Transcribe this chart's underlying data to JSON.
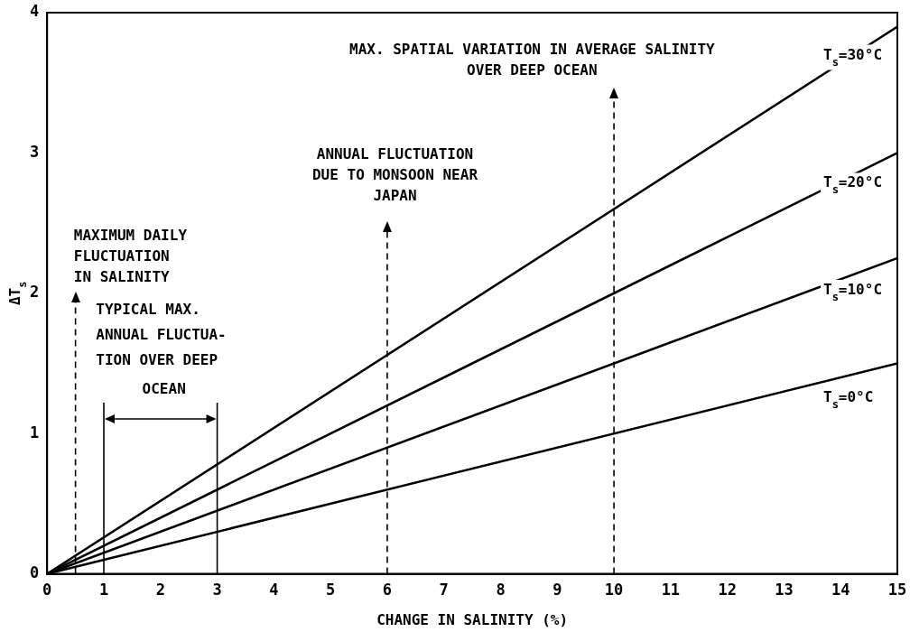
{
  "chart_data": {
    "type": "line",
    "xlabel": "CHANGE IN SALINITY (%)",
    "ylabel": "ΔT$_{s}$",
    "x": [
      0,
      15
    ],
    "xlim": [
      0,
      15
    ],
    "xticks": [
      0,
      1,
      2,
      3,
      4,
      5,
      6,
      7,
      8,
      9,
      10,
      11,
      12,
      13,
      14,
      15
    ],
    "ylim": [
      0,
      4
    ],
    "yticks": [
      0,
      1,
      2,
      3,
      4
    ],
    "grid": false,
    "legend": false,
    "marker": "none",
    "line_style": "solid",
    "series": [
      {
        "name": "T$_{s}$=30°C",
        "color": "#000000",
        "values": [
          0,
          3.9
        ]
      },
      {
        "name": "T$_{s}$=20°C",
        "color": "#000000",
        "values": [
          0,
          3.0
        ]
      },
      {
        "name": "T$_{s}$=10°C",
        "color": "#000000",
        "values": [
          0,
          2.25
        ]
      },
      {
        "name": "T$_{s}$=0°C",
        "color": "#000000",
        "values": [
          0,
          1.5
        ]
      }
    ],
    "ref_lines": [
      {
        "axis": "x",
        "value": 0.5,
        "line_style": "dashed"
      },
      {
        "axis": "x",
        "value": 6,
        "line_style": "dashed"
      },
      {
        "axis": "x",
        "value": 10,
        "line_style": "dashed"
      },
      {
        "axis": "x",
        "value": 1,
        "line_style": "solid"
      },
      {
        "axis": "x",
        "value": 3,
        "line_style": "solid"
      }
    ],
    "annotations": [
      "MAXIMUM DAILY\nFLUCTUATION\nIN SALINITY",
      "ANNUAL FLUCTUATION\nDUE TO MONSOON NEAR\nJAPAN",
      "MAX. SPATIAL VARIATION IN AVERAGE SALINITY\nOVER DEEP OCEAN",
      "TYPICAL MAX.\nANNUAL FLUCTUA-\nTION OVER DEEP\nOCEAN"
    ]
  }
}
